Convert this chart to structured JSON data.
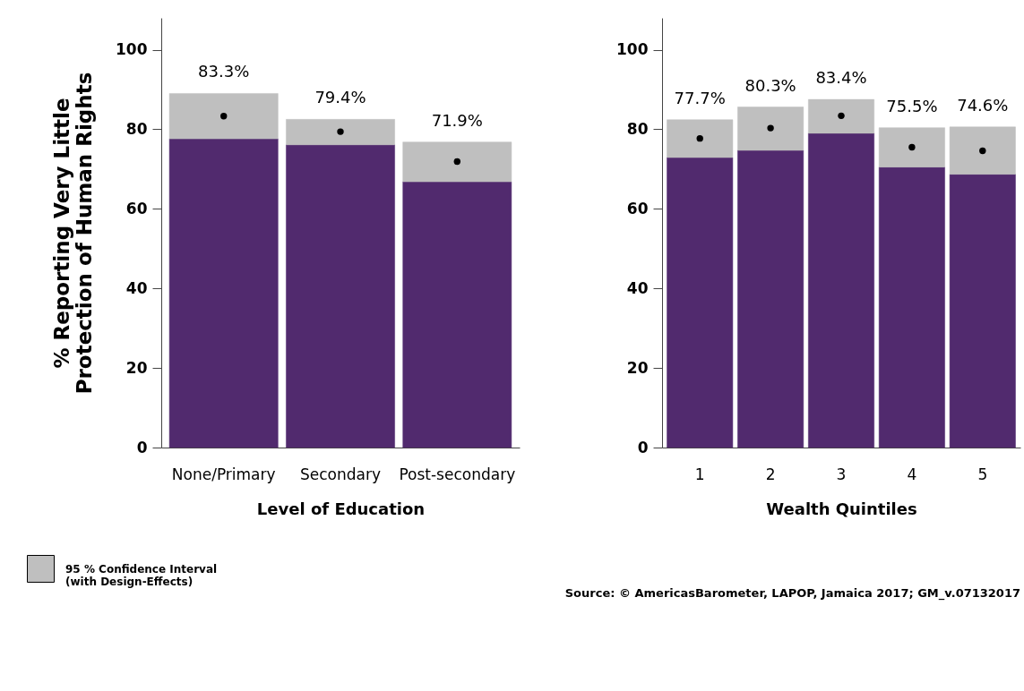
{
  "chart_data": [
    {
      "type": "bar",
      "xlabel": "Level of Education",
      "ylabel": "% Reporting Very Little\nProtection of Human Rights",
      "categories": [
        "None/Primary",
        "Secondary",
        "Post-secondary"
      ],
      "stacked": true,
      "ylim": [
        0,
        108
      ],
      "yticks": [
        0,
        20,
        40,
        60,
        80,
        100
      ],
      "legend": "bottom left",
      "series": [
        {
          "color": "#512a6e",
          "values": [
            77.6,
            76.1,
            66.8
          ]
        },
        {
          "name": "95 % Confidence Interval\n(with Design-Effects)",
          "color": "#bfbfbf",
          "values": [
            11.4,
            6.4,
            10.0
          ]
        },
        {
          "type": "scatter",
          "color": "#000000",
          "values": [
            83.3,
            79.4,
            71.9
          ],
          "value_labels": [
            "83.3%",
            "79.4%",
            "71.9%"
          ]
        }
      ]
    },
    {
      "type": "bar",
      "xlabel": "Wealth Quintiles",
      "categories": [
        "1",
        "2",
        "3",
        "4",
        "5"
      ],
      "stacked": true,
      "ylim": [
        0,
        108
      ],
      "yticks": [
        0,
        20,
        40,
        60,
        80,
        100
      ],
      "annotations": [
        "Source: © AmericasBarometer, LAPOP, Jamaica 2017; GM_v.07132017"
      ],
      "series": [
        {
          "color": "#512a6e",
          "values": [
            72.9,
            74.7,
            79.0,
            70.5,
            68.7
          ]
        },
        {
          "color": "#bfbfbf",
          "values": [
            9.5,
            10.9,
            8.5,
            9.9,
            11.9
          ]
        },
        {
          "type": "scatter",
          "color": "#000000",
          "values": [
            77.7,
            80.3,
            83.4,
            75.5,
            74.6
          ],
          "value_labels": [
            "77.7%",
            "80.3%",
            "83.4%",
            "75.5%",
            "74.6%"
          ]
        }
      ]
    }
  ]
}
